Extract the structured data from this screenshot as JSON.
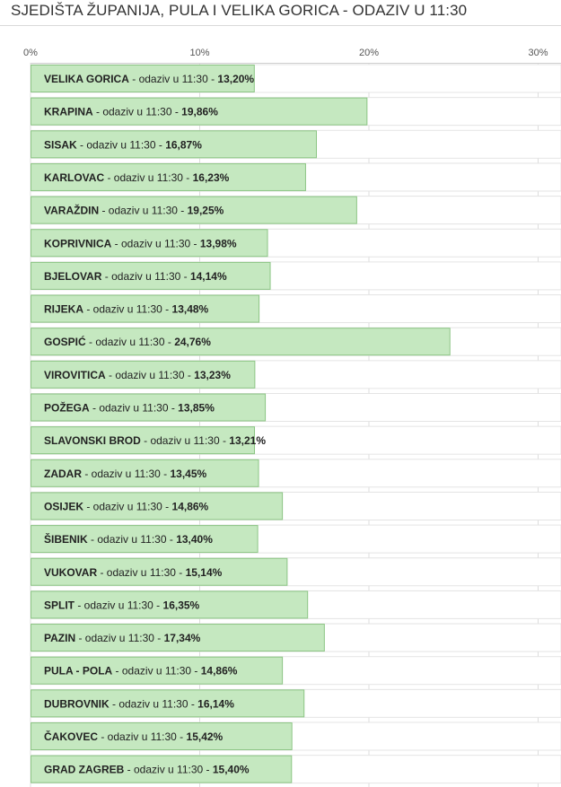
{
  "title": "SJEDIŠTA ŽUPANIJA, PULA I VELIKA GORICA - ODAZIV U 11:30",
  "chart_data": {
    "type": "bar",
    "orientation": "horizontal",
    "title": "SJEDIŠTA ŽUPANIJA, PULA I VELIKA GORICA - ODAZIV U 11:30",
    "xlabel": "",
    "ylabel": "",
    "xlim": [
      0,
      31
    ],
    "x_ticks": [
      "0%",
      "10%",
      "20%",
      "30%"
    ],
    "x_tick_values": [
      0,
      10,
      20,
      30
    ],
    "grid": true,
    "bar_color": "#c5e8c0",
    "bar_border_color": "#8cc584",
    "label_middle": " - odaziv u 11:30 - ",
    "categories": [
      "VELIKA GORICA",
      "KRAPINA",
      "SISAK",
      "KARLOVAC",
      "VARAŽDIN",
      "KOPRIVNICA",
      "BJELOVAR",
      "RIJEKA",
      "GOSPIĆ",
      "VIROVITICA",
      "POŽEGA",
      "SLAVONSKI BROD",
      "ZADAR",
      "OSIJEK",
      "ŠIBENIK",
      "VUKOVAR",
      "SPLIT",
      "PAZIN",
      "PULA - POLA",
      "DUBROVNIK",
      "ČAKOVEC",
      "GRAD ZAGREB"
    ],
    "values": [
      13.2,
      19.86,
      16.87,
      16.23,
      19.25,
      13.98,
      14.14,
      13.48,
      24.76,
      13.23,
      13.85,
      13.21,
      13.45,
      14.86,
      13.4,
      15.14,
      16.35,
      17.34,
      14.86,
      16.14,
      15.42,
      15.4
    ],
    "value_labels": [
      "13,20%",
      "19,86%",
      "16,87%",
      "16,23%",
      "19,25%",
      "13,98%",
      "14,14%",
      "13,48%",
      "24,76%",
      "13,23%",
      "13,85%",
      "13,21%",
      "13,45%",
      "14,86%",
      "13,40%",
      "15,14%",
      "16,35%",
      "17,34%",
      "14,86%",
      "16,14%",
      "15,42%",
      "15,40%"
    ]
  }
}
